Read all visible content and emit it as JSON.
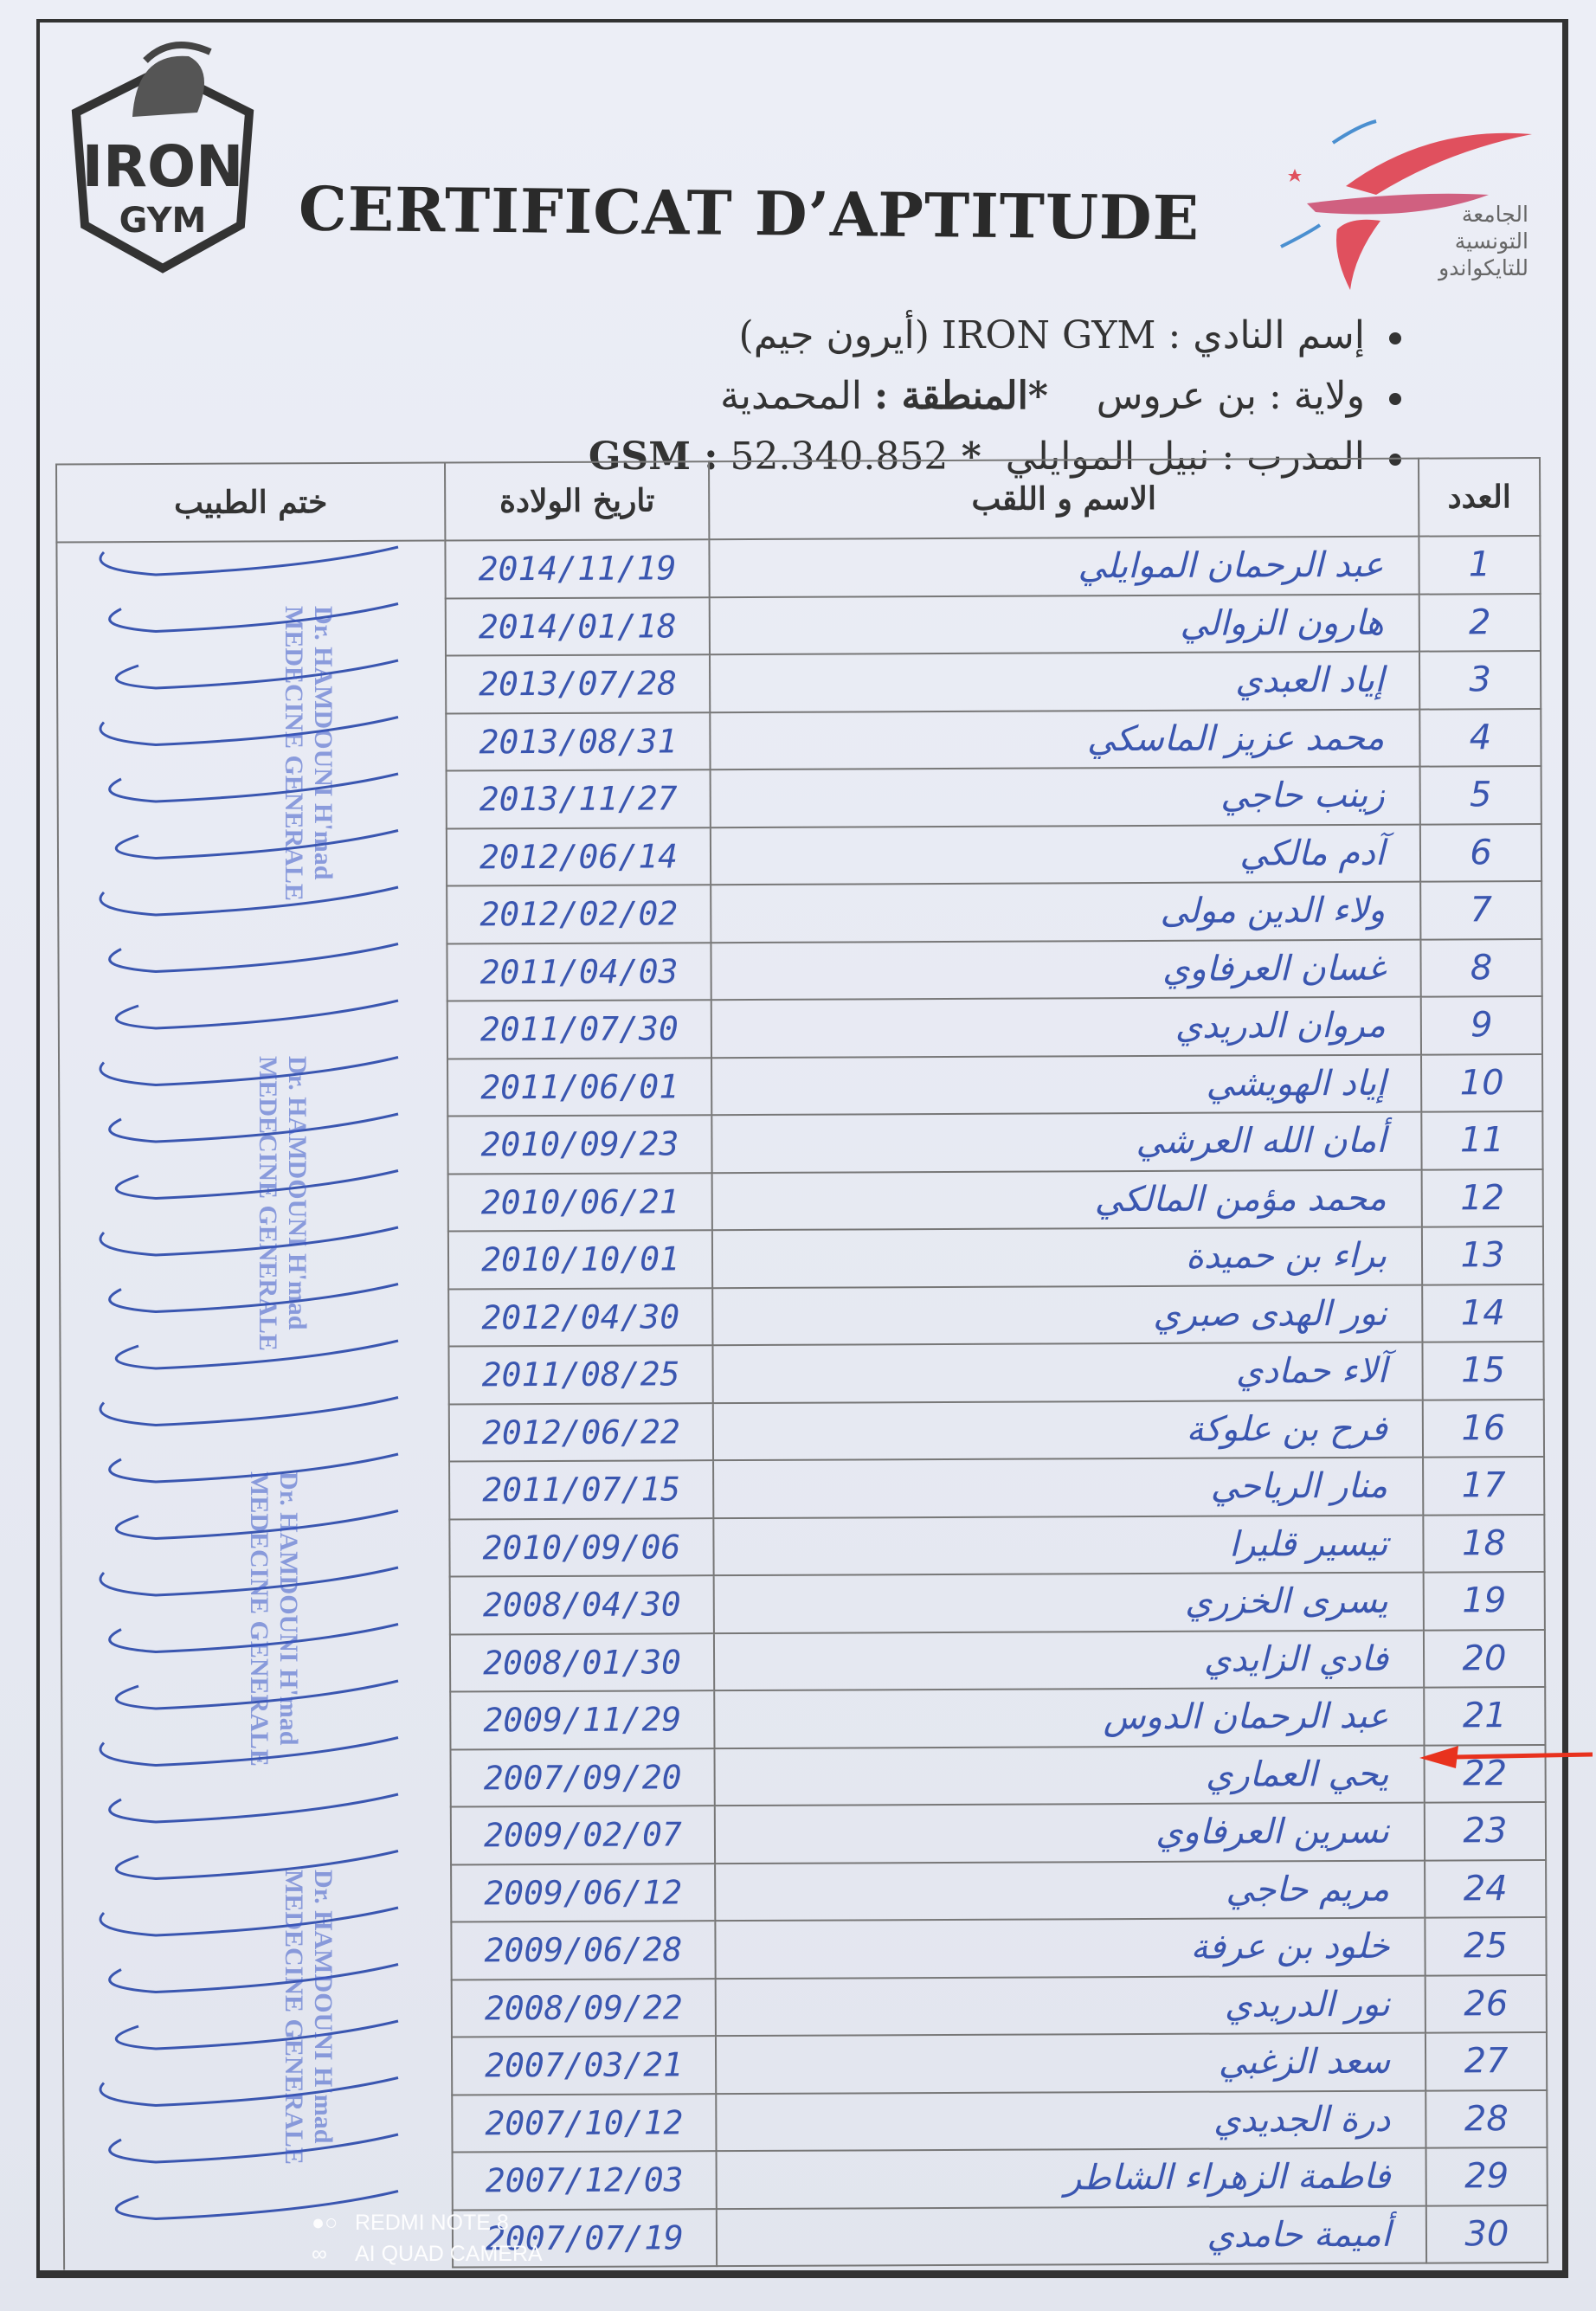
{
  "header": {
    "club_logo_text": [
      "IRON",
      "GYM"
    ],
    "title": "CERTIFICAT D’APTITUDE",
    "federation_name": [
      "الجامعة",
      "التونسية",
      "للتايكواندو"
    ]
  },
  "info": {
    "club_label": "إسم النادي :",
    "club_value": "IRON GYM (أيرون جيم)",
    "wilaya_label": "ولاية :",
    "wilaya_value": "بن عروس",
    "region_label": "*المنطقة :",
    "region_value": "المحمدية",
    "coach_label": "المدرب :",
    "coach_value": "نبيل الموايلي",
    "gsm_label": "* GSM :",
    "gsm_value": "52.340.852"
  },
  "table": {
    "headers": {
      "number": "العدد",
      "name": "الاسم و اللقب",
      "birthdate": "تاريخ الولادة",
      "doctor_stamp": "ختم الطبيب"
    },
    "rows": [
      {
        "number": "1",
        "name": "عبد الرحمان الموايلي",
        "birthdate": "2014/11/19"
      },
      {
        "number": "2",
        "name": "هارون الزوالي",
        "birthdate": "2014/01/18"
      },
      {
        "number": "3",
        "name": "إياد العبدي",
        "birthdate": "2013/07/28"
      },
      {
        "number": "4",
        "name": "محمد عزيز الماسكي",
        "birthdate": "2013/08/31"
      },
      {
        "number": "5",
        "name": "زينب حاجي",
        "birthdate": "2013/11/27"
      },
      {
        "number": "6",
        "name": "آدم مالكي",
        "birthdate": "2012/06/14"
      },
      {
        "number": "7",
        "name": "ولاء الدين مولى",
        "birthdate": "2012/02/02"
      },
      {
        "number": "8",
        "name": "غسان العرفاوي",
        "birthdate": "2011/04/03"
      },
      {
        "number": "9",
        "name": "مروان الدريدي",
        "birthdate": "2011/07/30"
      },
      {
        "number": "10",
        "name": "إياد الهويشي",
        "birthdate": "2011/06/01"
      },
      {
        "number": "11",
        "name": "أمان الله العرشي",
        "birthdate": "2010/09/23"
      },
      {
        "number": "12",
        "name": "محمد مؤمن المالكي",
        "birthdate": "2010/06/21"
      },
      {
        "number": "13",
        "name": "براء بن حميدة",
        "birthdate": "2010/10/01"
      },
      {
        "number": "14",
        "name": "نور الهدى صبري",
        "birthdate": "2012/04/30"
      },
      {
        "number": "15",
        "name": "آلاء حمادي",
        "birthdate": "2011/08/25"
      },
      {
        "number": "16",
        "name": "فرح بن علوكة",
        "birthdate": "2012/06/22"
      },
      {
        "number": "17",
        "name": "منار الرياحي",
        "birthdate": "2011/07/15"
      },
      {
        "number": "18",
        "name": "تيسير قليرا",
        "birthdate": "2010/09/06"
      },
      {
        "number": "19",
        "name": "يسرى الخزري",
        "birthdate": "2008/04/30"
      },
      {
        "number": "20",
        "name": "فادي الزايدي",
        "birthdate": "2008/01/30"
      },
      {
        "number": "21",
        "name": "عبد الرحمان الدوس",
        "birthdate": "2009/11/29"
      },
      {
        "number": "22",
        "name": "يحي العماري",
        "birthdate": "2007/09/20"
      },
      {
        "number": "23",
        "name": "نسرين العرفاوي",
        "birthdate": "2009/02/07"
      },
      {
        "number": "24",
        "name": "مريم حاجي",
        "birthdate": "2009/06/12"
      },
      {
        "number": "25",
        "name": "خلود بن عرفة",
        "birthdate": "2009/06/28"
      },
      {
        "number": "26",
        "name": "نور الدريدي",
        "birthdate": "2008/09/22"
      },
      {
        "number": "27",
        "name": "سعد الزغبي",
        "birthdate": "2007/03/21"
      },
      {
        "number": "28",
        "name": "درة الجديدي",
        "birthdate": "2007/10/12"
      },
      {
        "number": "29",
        "name": "فاطمة الزهراء الشاطر",
        "birthdate": "2007/12/03"
      },
      {
        "number": "30",
        "name": "أميمة حامدي",
        "birthdate": "2007/07/19"
      }
    ]
  },
  "stamp": {
    "line1": "Dr. HAMDOUNI H'mad",
    "line2": "MEDECINE GENERALE"
  },
  "annotation": {
    "arrow_row": "22",
    "arrow_color": "#e8321e"
  },
  "camera_watermark": {
    "line1": "REDMI NOTE 8",
    "line2": "AI QUAD CAMERA"
  },
  "colors": {
    "ink_blue": "#3a56b0",
    "federation_red": "#e0505e",
    "federation_blue": "#4a8fd0"
  }
}
